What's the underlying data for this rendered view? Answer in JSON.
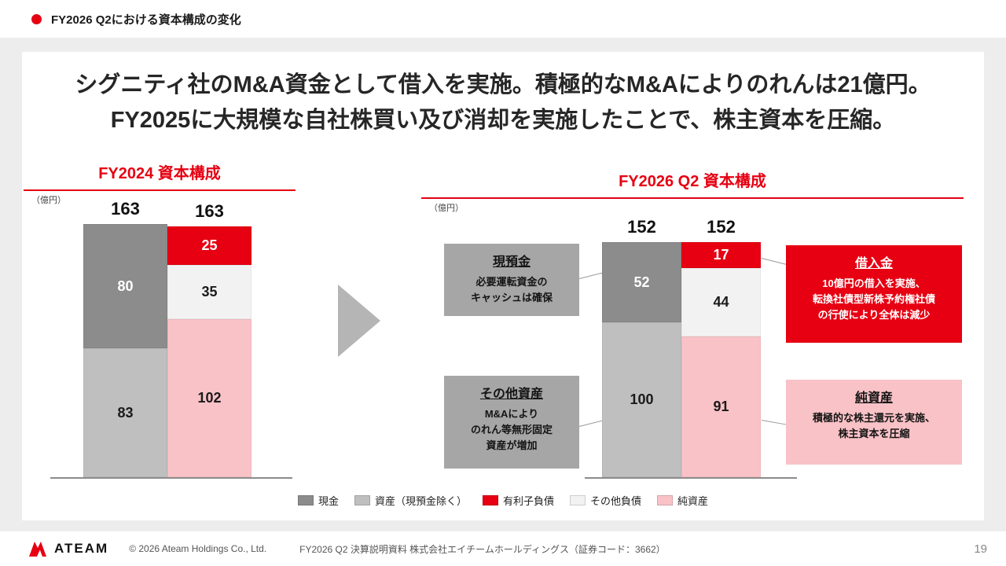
{
  "header": {
    "title": "FY2026 Q2における資本構成の変化"
  },
  "headline": {
    "line1": "シグニティ社のM&A資金として借入を実施。積極的なM&Aによりのれんは21億円。",
    "line2": "FY2025に大規模な自社株買い及び消却を実施したことで、株主資本を圧縮。"
  },
  "colors": {
    "accent_red": "#e60012",
    "cash_gray": "#8c8c8c",
    "asset_gray": "#bfbfbf",
    "other_liabilities_white": "#f2f2f2",
    "net_assets_pink": "#f9c2c7",
    "callout_gray": "#a6a6a6"
  },
  "chart_data": [
    {
      "type": "bar",
      "stacked": true,
      "title": "FY2024 資本構成",
      "unit": "（億円）",
      "ylabel": "億円",
      "columns": [
        {
          "total": 163,
          "segments": [
            {
              "key": "cash",
              "name": "現金",
              "value": 80,
              "color": "#8c8c8c",
              "label_color": "#ffffff"
            },
            {
              "key": "other-assets",
              "name": "資産（現預金除く）",
              "value": 83,
              "color": "#bfbfbf",
              "label_color": "#1a1a1a"
            }
          ]
        },
        {
          "total": 163,
          "segments": [
            {
              "key": "debt",
              "name": "有利子負債",
              "value": 25,
              "color": "#e60012",
              "label_color": "#ffffff"
            },
            {
              "key": "other-liabilities",
              "name": "その他負債",
              "value": 35,
              "color": "#f2f2f2",
              "label_color": "#1a1a1a"
            },
            {
              "key": "net-assets",
              "name": "純資産",
              "value": 102,
              "color": "#f9c2c7",
              "label_color": "#1a1a1a"
            }
          ]
        }
      ]
    },
    {
      "type": "bar",
      "stacked": true,
      "title": "FY2026 Q2 資本構成",
      "unit": "（億円）",
      "ylabel": "億円",
      "columns": [
        {
          "total": 152,
          "segments": [
            {
              "key": "cash",
              "name": "現金",
              "value": 52,
              "color": "#8c8c8c",
              "label_color": "#ffffff"
            },
            {
              "key": "other-assets",
              "name": "資産（現預金除く）",
              "value": 100,
              "color": "#bfbfbf",
              "label_color": "#1a1a1a"
            }
          ]
        },
        {
          "total": 152,
          "segments": [
            {
              "key": "debt",
              "name": "有利子負債",
              "value": 17,
              "color": "#e60012",
              "label_color": "#ffffff"
            },
            {
              "key": "other-liabilities",
              "name": "その他負債",
              "value": 44,
              "color": "#f2f2f2",
              "label_color": "#1a1a1a"
            },
            {
              "key": "net-assets",
              "name": "純資産",
              "value": 91,
              "color": "#f9c2c7",
              "label_color": "#1a1a1a"
            }
          ]
        }
      ]
    }
  ],
  "callouts": {
    "cash": {
      "title": "現預金",
      "body": "必要運転資金の\nキャッシュは確保"
    },
    "other_assets": {
      "title": "その他資産",
      "body": "M&Aにより\nのれん等無形固定\n資産が増加"
    },
    "debt": {
      "title": "借入金",
      "body": "10億円の借入を実施、\n転換社債型新株予約権社債\nの行使により全体は減少"
    },
    "net_assets": {
      "title": "純資産",
      "body": "積極的な株主還元を実施、\n株主資本を圧縮"
    }
  },
  "legend": [
    {
      "label": "現金",
      "color": "#8c8c8c"
    },
    {
      "label": "資産（現預金除く）",
      "color": "#bfbfbf"
    },
    {
      "label": "有利子負債",
      "color": "#e60012"
    },
    {
      "label": "その他負債",
      "color": "#f2f2f2"
    },
    {
      "label": "純資産",
      "color": "#f9c2c7"
    }
  ],
  "footer": {
    "logo_text": "ATEAM",
    "copyright": "© 2026 Ateam Holdings Co., Ltd.",
    "doc_title": "FY2026 Q2 決算説明資料 株式会社エイチームホールディングス（証券コード：3662）",
    "page": "19"
  }
}
